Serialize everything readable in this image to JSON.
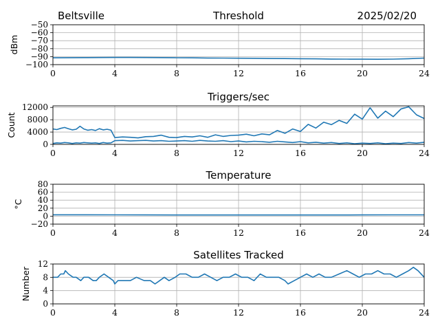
{
  "header": {
    "site": "Beltsville",
    "date": "2025/02/20"
  },
  "chart_data": [
    {
      "type": "line",
      "title": "Threshold",
      "ylabel": "dBm",
      "xlabel": "",
      "x_ticks": [
        "0",
        "4",
        "8",
        "12",
        "16",
        "20",
        "24"
      ],
      "y_ticks": [
        "−50",
        "−60",
        "−70",
        "−80",
        "−90",
        "−100"
      ],
      "xlim": [
        0,
        24
      ],
      "ylim": [
        -100,
        -50
      ],
      "grid": true,
      "series": [
        {
          "color": "#1f77b4",
          "x": [
            0,
            1,
            2,
            3,
            4,
            5,
            6,
            7,
            8,
            9,
            10,
            11,
            12,
            13,
            14,
            15,
            16,
            17,
            18,
            19,
            20,
            21,
            22,
            23,
            24
          ],
          "y": [
            -91.5,
            -91.3,
            -91.2,
            -91.1,
            -91.0,
            -91.0,
            -91.1,
            -91.2,
            -91.4,
            -91.5,
            -91.7,
            -91.8,
            -92.0,
            -92.1,
            -92.3,
            -92.4,
            -92.6,
            -92.8,
            -93.0,
            -93.1,
            -93.2,
            -93.3,
            -93.1,
            -92.6,
            -91.8
          ]
        }
      ]
    },
    {
      "type": "line",
      "title": "Triggers/sec",
      "ylabel": "Count",
      "xlabel": "",
      "x_ticks": [
        "0",
        "4",
        "8",
        "12",
        "16",
        "20",
        "24"
      ],
      "y_ticks": [
        "0",
        "4000",
        "8000",
        "12000"
      ],
      "xlim": [
        0,
        24
      ],
      "ylim": [
        0,
        12500
      ],
      "grid": true,
      "series": [
        {
          "color": "#1f77b4",
          "x": [
            0,
            0.25,
            0.5,
            0.75,
            1,
            1.25,
            1.5,
            1.75,
            2,
            2.25,
            2.5,
            2.75,
            3,
            3.25,
            3.5,
            3.75,
            4,
            4.5,
            5,
            5.5,
            6,
            6.5,
            7,
            7.5,
            8,
            8.5,
            9,
            9.5,
            10,
            10.5,
            11,
            11.5,
            12,
            12.5,
            13,
            13.5,
            14,
            14.5,
            15,
            15.5,
            16,
            16.5,
            17,
            17.5,
            18,
            18.5,
            19,
            19.5,
            20,
            20.5,
            21,
            21.5,
            22,
            22.5,
            23,
            23.5,
            24
          ],
          "y": [
            5000,
            4800,
            5200,
            5500,
            5100,
            4700,
            4900,
            5900,
            5000,
            4600,
            4800,
            4500,
            5100,
            4700,
            4900,
            4600,
            2200,
            2400,
            2300,
            2100,
            2500,
            2600,
            3000,
            2300,
            2200,
            2600,
            2400,
            2800,
            2300,
            3100,
            2600,
            2900,
            3000,
            3300,
            2800,
            3400,
            3100,
            4500,
            3600,
            5000,
            4200,
            6500,
            5300,
            7200,
            6400,
            7800,
            6800,
            9800,
            8200,
            11900,
            8500,
            10800,
            9000,
            11500,
            12200,
            9600,
            8400
          ]
        },
        {
          "color": "#1f77b4",
          "x": [
            0,
            0.25,
            0.5,
            0.75,
            1,
            1.25,
            1.5,
            1.75,
            2,
            2.25,
            2.5,
            2.75,
            3,
            3.25,
            3.5,
            3.75,
            4,
            4.5,
            5,
            5.5,
            6,
            6.5,
            7,
            7.5,
            8,
            8.5,
            9,
            9.5,
            10,
            10.5,
            11,
            11.5,
            12,
            12.5,
            13,
            13.5,
            14,
            14.5,
            15,
            15.5,
            16,
            16.5,
            17,
            17.5,
            18,
            18.5,
            19,
            19.5,
            20,
            20.5,
            21,
            21.5,
            22,
            22.5,
            23,
            23.5,
            24
          ],
          "y": [
            300,
            500,
            400,
            600,
            500,
            300,
            500,
            400,
            600,
            500,
            400,
            500,
            300,
            600,
            400,
            500,
            1200,
            1300,
            1100,
            1200,
            1300,
            1100,
            1200,
            1000,
            1100,
            1200,
            1000,
            1300,
            1100,
            1000,
            1200,
            900,
            1100,
            800,
            1000,
            900,
            700,
            1000,
            800,
            600,
            900,
            500,
            700,
            400,
            600,
            300,
            500,
            200,
            400,
            300,
            500,
            200,
            400,
            300,
            600,
            400,
            700
          ]
        }
      ]
    },
    {
      "type": "line",
      "title": "Temperature",
      "ylabel": "°C",
      "xlabel": "",
      "x_ticks": [
        "0",
        "4",
        "8",
        "12",
        "16",
        "20",
        "24"
      ],
      "y_ticks": [
        "80",
        "60",
        "40",
        "20",
        "0",
        "−20"
      ],
      "xlim": [
        0,
        24
      ],
      "ylim": [
        -20,
        80
      ],
      "grid": true,
      "series": [
        {
          "color": "#1f77b4",
          "x": [
            0,
            2,
            4,
            6,
            8,
            10,
            12,
            14,
            16,
            18,
            20,
            22,
            24
          ],
          "y": [
            3.5,
            3.4,
            3.2,
            3.1,
            3.0,
            3.0,
            3.0,
            3.0,
            3.0,
            3.0,
            3.1,
            3.2,
            3.2
          ]
        }
      ]
    },
    {
      "type": "line",
      "title": "Satellites Tracked",
      "ylabel": "Number",
      "xlabel": "",
      "x_ticks": [
        "0",
        "4",
        "8",
        "12",
        "16",
        "20",
        "24"
      ],
      "y_ticks": [
        "0",
        "4",
        "8",
        "12"
      ],
      "xlim": [
        0,
        24
      ],
      "ylim": [
        0,
        12
      ],
      "grid": true,
      "series": [
        {
          "color": "#1f77b4",
          "x": [
            0,
            0.3,
            0.5,
            0.7,
            0.8,
            1.0,
            1.3,
            1.5,
            1.8,
            2.0,
            2.3,
            2.6,
            2.8,
            3.0,
            3.3,
            3.6,
            3.9,
            4.0,
            4.2,
            4.5,
            5.0,
            5.4,
            5.9,
            6.3,
            6.6,
            6.9,
            7.2,
            7.5,
            7.9,
            8.2,
            8.6,
            9.0,
            9.4,
            9.8,
            10.2,
            10.6,
            11.0,
            11.4,
            11.8,
            12.2,
            12.6,
            13.0,
            13.4,
            13.8,
            14.2,
            14.6,
            15.0,
            15.2,
            15.6,
            16.0,
            16.4,
            16.8,
            17.2,
            17.6,
            18.0,
            18.5,
            19.0,
            19.4,
            19.8,
            20.2,
            20.6,
            21.0,
            21.4,
            21.8,
            22.2,
            22.6,
            23.0,
            23.3,
            23.6,
            24.0
          ],
          "y": [
            8,
            8,
            9,
            9,
            10,
            9,
            8,
            8,
            7,
            8,
            8,
            7,
            7,
            8,
            9,
            8,
            7,
            6,
            7,
            7,
            7,
            8,
            7,
            7,
            6,
            7,
            8,
            7,
            8,
            9,
            9,
            8,
            8,
            9,
            8,
            7,
            8,
            8,
            9,
            8,
            8,
            7,
            9,
            8,
            8,
            8,
            7,
            6,
            7,
            8,
            9,
            8,
            9,
            8,
            8,
            9,
            10,
            9,
            8,
            9,
            9,
            10,
            9,
            9,
            8,
            9,
            10,
            11,
            10,
            8
          ]
        }
      ]
    }
  ]
}
